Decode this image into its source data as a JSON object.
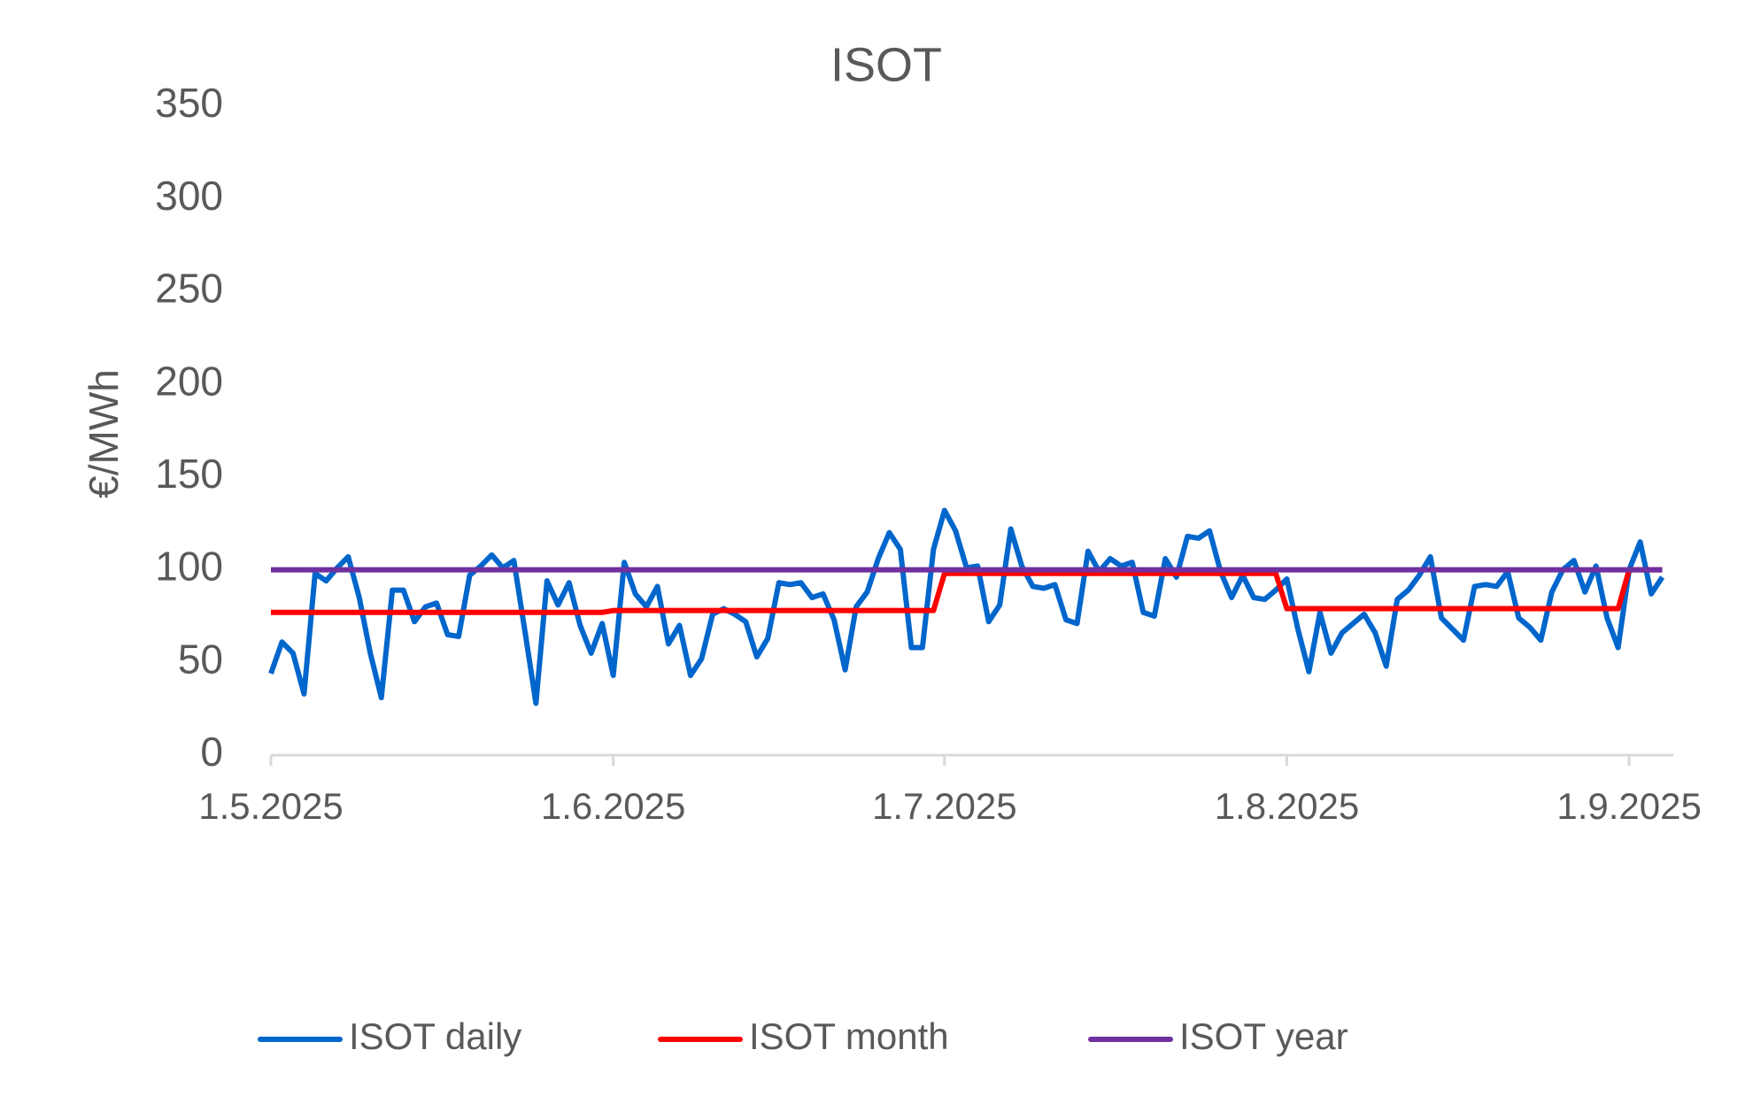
{
  "chart_data": {
    "type": "line",
    "title": "ISOT",
    "ylabel": "€/MWh",
    "x": [
      "2025-05-01",
      "2025-05-02",
      "2025-05-03",
      "2025-05-04",
      "2025-05-05",
      "2025-05-06",
      "2025-05-07",
      "2025-05-08",
      "2025-05-09",
      "2025-05-10",
      "2025-05-11",
      "2025-05-12",
      "2025-05-13",
      "2025-05-14",
      "2025-05-15",
      "2025-05-16",
      "2025-05-17",
      "2025-05-18",
      "2025-05-19",
      "2025-05-20",
      "2025-05-21",
      "2025-05-22",
      "2025-05-23",
      "2025-05-24",
      "2025-05-25",
      "2025-05-26",
      "2025-05-27",
      "2025-05-28",
      "2025-05-29",
      "2025-05-30",
      "2025-05-31",
      "2025-06-01",
      "2025-06-02",
      "2025-06-03",
      "2025-06-04",
      "2025-06-05",
      "2025-06-06",
      "2025-06-07",
      "2025-06-08",
      "2025-06-09",
      "2025-06-10",
      "2025-06-11",
      "2025-06-12",
      "2025-06-13",
      "2025-06-14",
      "2025-06-15",
      "2025-06-16",
      "2025-06-17",
      "2025-06-18",
      "2025-06-19",
      "2025-06-20",
      "2025-06-21",
      "2025-06-22",
      "2025-06-23",
      "2025-06-24",
      "2025-06-25",
      "2025-06-26",
      "2025-06-27",
      "2025-06-28",
      "2025-06-29",
      "2025-06-30",
      "2025-07-01",
      "2025-07-02",
      "2025-07-03",
      "2025-07-04",
      "2025-07-05",
      "2025-07-06",
      "2025-07-07",
      "2025-07-08",
      "2025-07-09",
      "2025-07-10",
      "2025-07-11",
      "2025-07-12",
      "2025-07-13",
      "2025-07-14",
      "2025-07-15",
      "2025-07-16",
      "2025-07-17",
      "2025-07-18",
      "2025-07-19",
      "2025-07-20",
      "2025-07-21",
      "2025-07-22",
      "2025-07-23",
      "2025-07-24",
      "2025-07-25",
      "2025-07-26",
      "2025-07-27",
      "2025-07-28",
      "2025-07-29",
      "2025-07-30",
      "2025-07-31",
      "2025-08-01",
      "2025-08-02",
      "2025-08-03",
      "2025-08-04",
      "2025-08-05",
      "2025-08-06",
      "2025-08-07",
      "2025-08-08",
      "2025-08-09",
      "2025-08-10",
      "2025-08-11",
      "2025-08-12",
      "2025-08-13",
      "2025-08-14",
      "2025-08-15",
      "2025-08-16",
      "2025-08-17",
      "2025-08-18",
      "2025-08-19",
      "2025-08-20",
      "2025-08-21",
      "2025-08-22",
      "2025-08-23",
      "2025-08-24",
      "2025-08-25",
      "2025-08-26",
      "2025-08-27",
      "2025-08-28",
      "2025-08-29",
      "2025-08-30",
      "2025-08-31",
      "2025-09-01",
      "2025-09-02",
      "2025-09-03",
      "2025-09-04"
    ],
    "series": [
      {
        "name": "ISOT daily",
        "color": "#0066cc",
        "values": [
          44,
          61,
          55,
          33,
          98,
          94,
          101,
          107,
          85,
          55,
          31,
          89,
          89,
          72,
          80,
          82,
          65,
          64,
          97,
          102,
          108,
          101,
          105,
          67,
          28,
          94,
          81,
          93,
          70,
          55,
          71,
          43,
          104,
          87,
          80,
          91,
          60,
          70,
          43,
          52,
          76,
          79,
          76,
          72,
          53,
          63,
          93,
          92,
          93,
          85,
          87,
          73,
          46,
          80,
          88,
          106,
          120,
          111,
          58,
          58,
          111,
          132,
          121,
          101,
          102,
          72,
          81,
          122,
          102,
          91,
          90,
          92,
          73,
          71,
          110,
          99,
          106,
          102,
          104,
          77,
          75,
          106,
          96,
          118,
          117,
          121,
          99,
          85,
          97,
          85,
          84,
          89,
          95,
          68,
          45,
          77,
          55,
          66,
          71,
          76,
          66,
          48,
          84,
          89,
          97,
          107,
          74,
          68,
          62,
          91,
          92,
          91,
          99,
          74,
          69,
          62,
          88,
          100,
          105,
          88,
          102,
          74,
          58,
          100,
          115,
          87,
          96
        ]
      },
      {
        "name": "ISOT month",
        "color": "#ff0000",
        "values": [
          77,
          77,
          77,
          77,
          77,
          77,
          77,
          77,
          77,
          77,
          77,
          77,
          77,
          77,
          77,
          77,
          77,
          77,
          77,
          77,
          77,
          77,
          77,
          77,
          77,
          77,
          77,
          77,
          77,
          77,
          77,
          78,
          78,
          78,
          78,
          78,
          78,
          78,
          78,
          78,
          78,
          78,
          78,
          78,
          78,
          78,
          78,
          78,
          78,
          78,
          78,
          78,
          78,
          78,
          78,
          78,
          78,
          78,
          78,
          78,
          78,
          98,
          98,
          98,
          98,
          98,
          98,
          98,
          98,
          98,
          98,
          98,
          98,
          98,
          98,
          98,
          98,
          98,
          98,
          98,
          98,
          98,
          98,
          98,
          98,
          98,
          98,
          98,
          98,
          98,
          98,
          98,
          79,
          79,
          79,
          79,
          79,
          79,
          79,
          79,
          79,
          79,
          79,
          79,
          79,
          79,
          79,
          79,
          79,
          79,
          79,
          79,
          79,
          79,
          79,
          79,
          79,
          79,
          79,
          79,
          79,
          79,
          79,
          100,
          100,
          100,
          100
        ]
      },
      {
        "name": "ISOT year",
        "color": "#7030a0",
        "values": [
          100,
          100,
          100,
          100,
          100,
          100,
          100,
          100,
          100,
          100,
          100,
          100,
          100,
          100,
          100,
          100,
          100,
          100,
          100,
          100,
          100,
          100,
          100,
          100,
          100,
          100,
          100,
          100,
          100,
          100,
          100,
          100,
          100,
          100,
          100,
          100,
          100,
          100,
          100,
          100,
          100,
          100,
          100,
          100,
          100,
          100,
          100,
          100,
          100,
          100,
          100,
          100,
          100,
          100,
          100,
          100,
          100,
          100,
          100,
          100,
          100,
          100,
          100,
          100,
          100,
          100,
          100,
          100,
          100,
          100,
          100,
          100,
          100,
          100,
          100,
          100,
          100,
          100,
          100,
          100,
          100,
          100,
          100,
          100,
          100,
          100,
          100,
          100,
          100,
          100,
          100,
          100,
          100,
          100,
          100,
          100,
          100,
          100,
          100,
          100,
          100,
          100,
          100,
          100,
          100,
          100,
          100,
          100,
          100,
          100,
          100,
          100,
          100,
          100,
          100,
          100,
          100,
          100,
          100,
          100,
          100,
          100,
          100,
          100,
          100,
          100,
          100
        ]
      }
    ],
    "xlim": [
      "2025-05-01",
      "2025-09-05"
    ],
    "xticks": [
      {
        "value": "2025-05-01",
        "label": "1.5.2025"
      },
      {
        "value": "2025-06-01",
        "label": "1.6.2025"
      },
      {
        "value": "2025-07-01",
        "label": "1.7.2025"
      },
      {
        "value": "2025-08-01",
        "label": "1.8.2025"
      },
      {
        "value": "2025-09-01",
        "label": "1.9.2025"
      }
    ],
    "ylim": [
      0,
      350
    ],
    "yticks": [
      0,
      50,
      100,
      150,
      200,
      250,
      300,
      350
    ],
    "grid": false,
    "legend": "bottom"
  }
}
